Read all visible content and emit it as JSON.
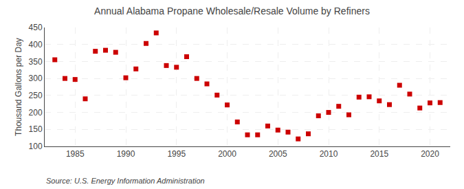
{
  "chart_data": {
    "type": "scatter",
    "title": "Annual Alabama Propane Wholesale/Resale Volume by Refiners",
    "ylabel": "Thousand Gallons per Day",
    "annotations": [
      "Source: U.S. Energy Information Administration"
    ],
    "x": [
      1983,
      1984,
      1985,
      1986,
      1987,
      1988,
      1989,
      1990,
      1991,
      1992,
      1993,
      1994,
      1995,
      1996,
      1997,
      1998,
      1999,
      2000,
      2001,
      2002,
      2003,
      2004,
      2005,
      2006,
      2007,
      2008,
      2009,
      2010,
      2011,
      2012,
      2013,
      2014,
      2015,
      2016,
      2017,
      2018,
      2019,
      2020,
      2021
    ],
    "values": [
      355,
      300,
      297,
      240,
      380,
      383,
      377,
      302,
      328,
      403,
      434,
      338,
      333,
      364,
      300,
      284,
      251,
      222,
      172,
      134,
      134,
      160,
      148,
      142,
      122,
      137,
      190,
      200,
      218,
      193,
      245,
      246,
      234,
      223,
      280,
      254,
      213,
      228,
      229
    ],
    "color": "#cc0000",
    "marker": "square",
    "xlim": [
      1982,
      2022
    ],
    "xticks": [
      1985,
      1990,
      1995,
      2000,
      2005,
      2010,
      2015,
      2020
    ],
    "ylim": [
      100,
      450
    ],
    "yticks": [
      100,
      150,
      200,
      250,
      300,
      350,
      400,
      450
    ],
    "grid": true
  }
}
